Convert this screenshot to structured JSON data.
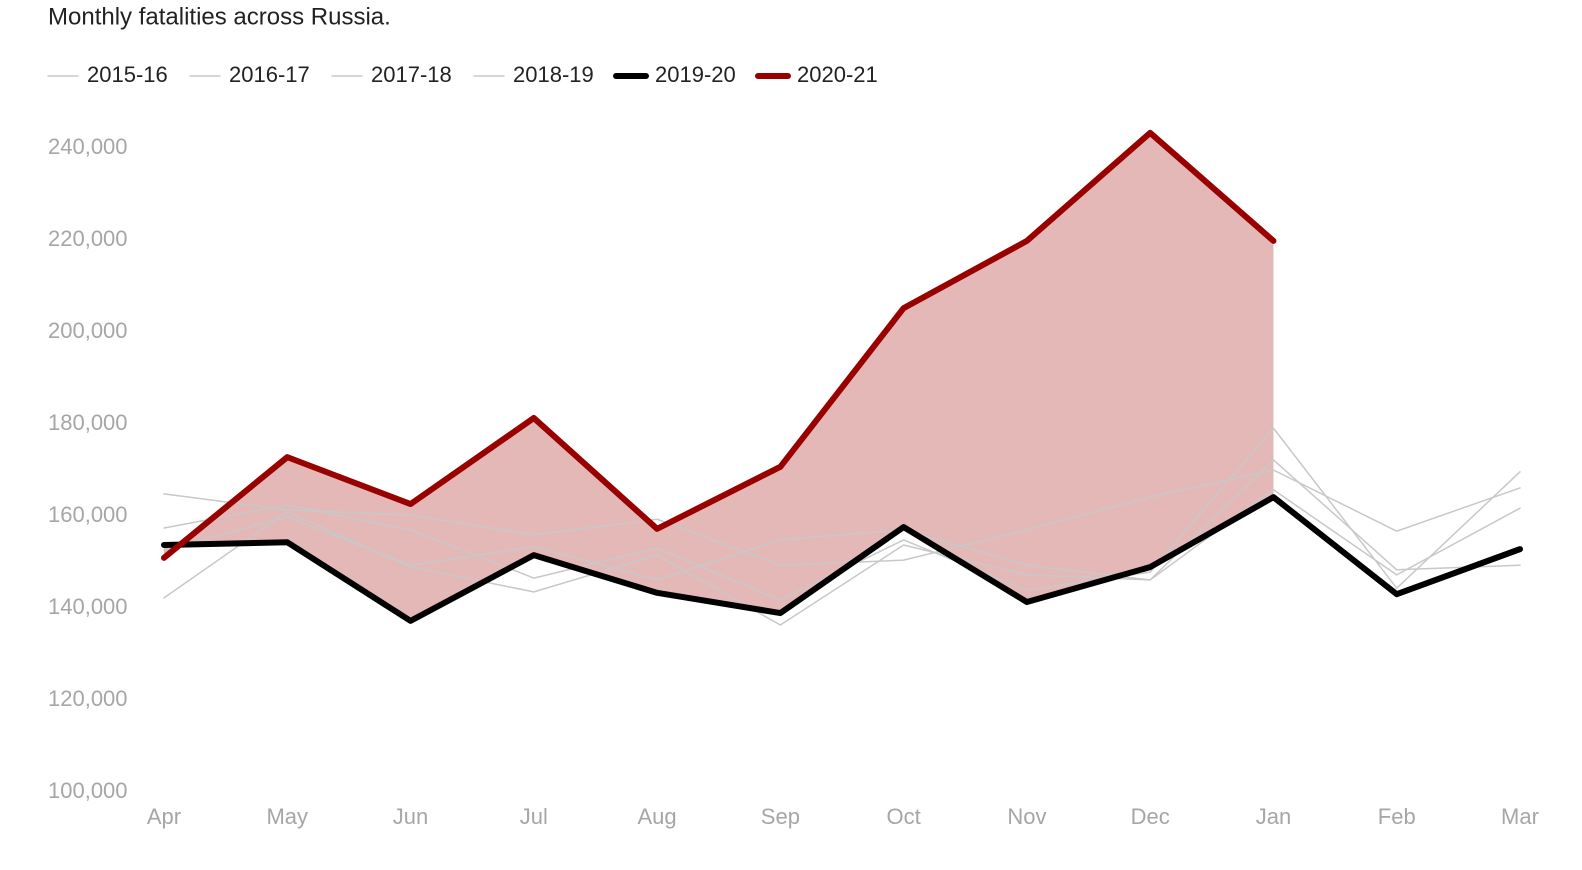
{
  "chart_data": {
    "type": "line",
    "title": "Monthly fatalities across Russia.",
    "categories": [
      "Apr",
      "May",
      "Jun",
      "Jul",
      "Aug",
      "Sep",
      "Oct",
      "Nov",
      "Dec",
      "Jan",
      "Feb",
      "Mar"
    ],
    "series": [
      {
        "name": "2015-16",
        "color": "#c8c8c8",
        "width": 1.5,
        "values": [
          164800,
          161300,
          160200,
          155900,
          159300,
          149300,
          150400,
          157000,
          164100,
          170000,
          156700,
          166100
        ]
      },
      {
        "name": "2016-17",
        "color": "#c8c8c8",
        "width": 1.5,
        "values": [
          142200,
          160900,
          148900,
          143500,
          151500,
          136300,
          153700,
          147200,
          146100,
          172200,
          148300,
          149300
        ]
      },
      {
        "name": "2017-18",
        "color": "#c8c8c8",
        "width": 1.5,
        "values": [
          157400,
          162400,
          157000,
          146500,
          153000,
          141700,
          154800,
          143900,
          147800,
          179100,
          144300,
          169600
        ]
      },
      {
        "name": "2018-19",
        "color": "#c8c8c8",
        "width": 1.5,
        "values": [
          152600,
          159800,
          149300,
          153300,
          146100,
          154800,
          157000,
          149300,
          146100,
          165700,
          147200,
          161700
        ]
      },
      {
        "name": "2019-20",
        "color": "#000000",
        "width": 6,
        "values": [
          153700,
          154300,
          137200,
          151500,
          143300,
          138900,
          157600,
          141300,
          148900,
          164100,
          143000,
          152800
        ]
      },
      {
        "name": "2020-21",
        "color": "#990000",
        "width": 6,
        "values": [
          150900,
          172800,
          162600,
          181300,
          157200,
          170700,
          205200,
          219800,
          243300,
          219800,
          null,
          null
        ]
      }
    ],
    "fill_between": {
      "upper": "2020-21",
      "lower": "2019-20",
      "color": "#e5b8b8"
    },
    "ylim": [
      100000,
      240000
    ],
    "yticks": [
      {
        "value": 100000,
        "label": "100,000"
      },
      {
        "value": 120000,
        "label": "120,000"
      },
      {
        "value": 140000,
        "label": "140,000"
      },
      {
        "value": 160000,
        "label": "160,000"
      },
      {
        "value": 180000,
        "label": "180,000"
      },
      {
        "value": 200000,
        "label": "200,000"
      },
      {
        "value": 220000,
        "label": "220,000"
      },
      {
        "value": 240000,
        "label": "240,000"
      }
    ],
    "grid": false,
    "legend": "top-left"
  }
}
